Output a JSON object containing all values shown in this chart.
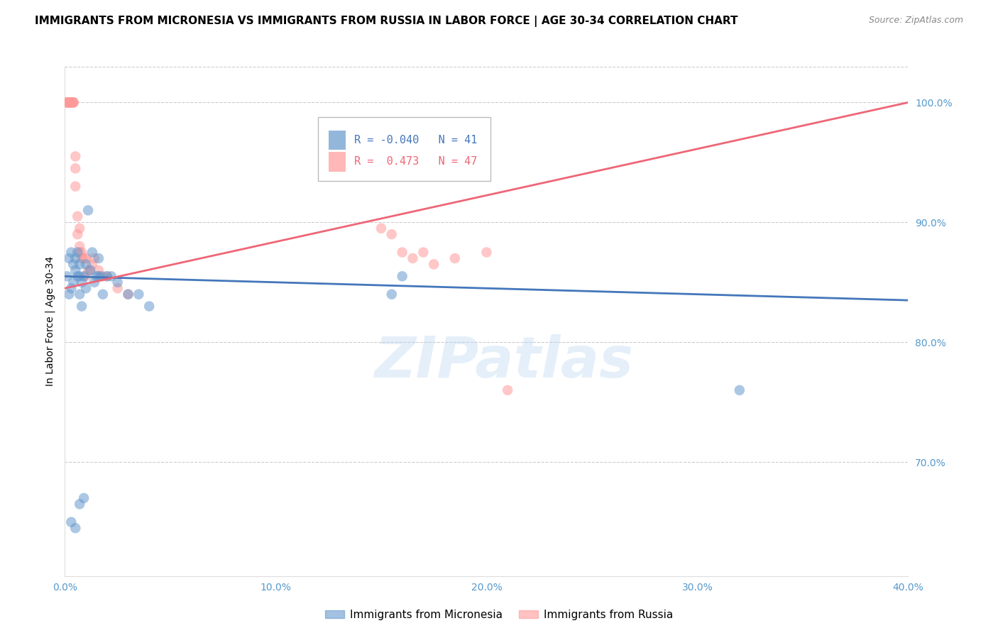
{
  "title": "IMMIGRANTS FROM MICRONESIA VS IMMIGRANTS FROM RUSSIA IN LABOR FORCE | AGE 30-34 CORRELATION CHART",
  "source": "Source: ZipAtlas.com",
  "ylabel": "In Labor Force | Age 30-34",
  "watermark": "ZIPatlas",
  "xlim": [
    0.0,
    0.4
  ],
  "ylim": [
    0.605,
    1.03
  ],
  "yticks_right": [
    0.7,
    0.8,
    0.9,
    1.0
  ],
  "ytick_right_labels": [
    "70.0%",
    "80.0%",
    "90.0%",
    "100.0%"
  ],
  "blue_R": -0.04,
  "blue_N": 41,
  "pink_R": 0.473,
  "pink_N": 47,
  "blue_color": "#6699CC",
  "pink_color": "#FF9999",
  "blue_line_color": "#4477BB",
  "pink_line_color": "#EE6677",
  "legend_label_blue": "Immigrants from Micronesia",
  "legend_label_pink": "Immigrants from Russia",
  "micronesia_x": [
    0.001,
    0.002,
    0.002,
    0.003,
    0.003,
    0.004,
    0.004,
    0.005,
    0.005,
    0.006,
    0.006,
    0.007,
    0.007,
    0.007,
    0.008,
    0.008,
    0.009,
    0.01,
    0.01,
    0.011,
    0.012,
    0.013,
    0.014,
    0.015,
    0.016,
    0.016,
    0.017,
    0.018,
    0.02,
    0.022,
    0.025,
    0.03,
    0.035,
    0.04,
    0.155,
    0.16,
    0.32,
    0.003,
    0.005,
    0.007,
    0.009
  ],
  "micronesia_y": [
    0.855,
    0.84,
    0.87,
    0.875,
    0.845,
    0.865,
    0.85,
    0.86,
    0.87,
    0.855,
    0.875,
    0.84,
    0.855,
    0.865,
    0.83,
    0.85,
    0.855,
    0.865,
    0.845,
    0.91,
    0.86,
    0.875,
    0.85,
    0.855,
    0.87,
    0.855,
    0.855,
    0.84,
    0.855,
    0.855,
    0.85,
    0.84,
    0.84,
    0.83,
    0.84,
    0.855,
    0.76,
    0.65,
    0.645,
    0.665,
    0.67
  ],
  "russia_x": [
    0.001,
    0.001,
    0.001,
    0.002,
    0.002,
    0.002,
    0.002,
    0.003,
    0.003,
    0.003,
    0.003,
    0.003,
    0.004,
    0.004,
    0.004,
    0.004,
    0.005,
    0.005,
    0.005,
    0.006,
    0.006,
    0.007,
    0.007,
    0.007,
    0.008,
    0.008,
    0.009,
    0.01,
    0.01,
    0.011,
    0.012,
    0.013,
    0.014,
    0.016,
    0.018,
    0.02,
    0.025,
    0.03,
    0.15,
    0.155,
    0.16,
    0.165,
    0.17,
    0.175,
    0.185,
    0.2,
    0.21
  ],
  "russia_y": [
    1.0,
    1.0,
    1.0,
    1.0,
    1.0,
    1.0,
    1.0,
    1.0,
    1.0,
    1.0,
    1.0,
    1.0,
    1.0,
    1.0,
    1.0,
    1.0,
    0.955,
    0.945,
    0.93,
    0.905,
    0.89,
    0.895,
    0.875,
    0.88,
    0.875,
    0.87,
    0.87,
    0.87,
    0.855,
    0.86,
    0.86,
    0.865,
    0.87,
    0.86,
    0.855,
    0.855,
    0.845,
    0.84,
    0.895,
    0.89,
    0.875,
    0.87,
    0.875,
    0.865,
    0.87,
    0.875,
    0.76
  ],
  "blue_line_x": [
    0.0,
    0.4
  ],
  "blue_line_y": [
    0.855,
    0.835
  ],
  "pink_line_x": [
    0.0,
    0.4
  ],
  "pink_line_y": [
    0.845,
    1.0
  ]
}
